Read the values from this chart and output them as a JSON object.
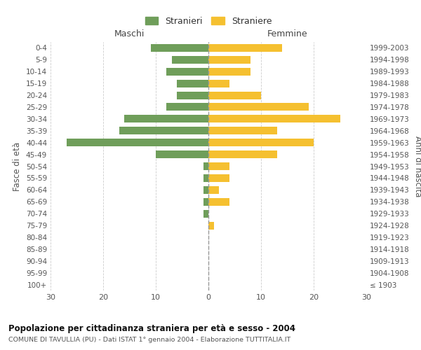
{
  "age_groups": [
    "0-4",
    "5-9",
    "10-14",
    "15-19",
    "20-24",
    "25-29",
    "30-34",
    "35-39",
    "40-44",
    "45-49",
    "50-54",
    "55-59",
    "60-64",
    "65-69",
    "70-74",
    "75-79",
    "80-84",
    "85-89",
    "90-94",
    "95-99",
    "100+"
  ],
  "birth_years": [
    "1999-2003",
    "1994-1998",
    "1989-1993",
    "1984-1988",
    "1979-1983",
    "1974-1978",
    "1969-1973",
    "1964-1968",
    "1959-1963",
    "1954-1958",
    "1949-1953",
    "1944-1948",
    "1939-1943",
    "1934-1938",
    "1929-1933",
    "1924-1928",
    "1919-1923",
    "1914-1918",
    "1909-1913",
    "1904-1908",
    "≤ 1903"
  ],
  "maschi": [
    11,
    7,
    8,
    6,
    6,
    8,
    16,
    17,
    27,
    10,
    1,
    1,
    1,
    1,
    1,
    0,
    0,
    0,
    0,
    0,
    0
  ],
  "femmine": [
    14,
    8,
    8,
    4,
    10,
    19,
    25,
    13,
    20,
    13,
    4,
    4,
    2,
    4,
    0,
    1,
    0,
    0,
    0,
    0,
    0
  ],
  "male_color": "#6f9e5a",
  "female_color": "#f5c030",
  "title_main": "Popolazione per cittadinanza straniera per età e sesso - 2004",
  "title_sub": "COMUNE DI TAVULLIA (PU) - Dati ISTAT 1° gennaio 2004 - Elaborazione TUTTITALIA.IT",
  "legend_male": "Stranieri",
  "legend_female": "Straniere",
  "xlabel_left": "Maschi",
  "xlabel_right": "Femmine",
  "ylabel_left": "Fasce di età",
  "ylabel_right": "Anni di nascita",
  "xlim": 30,
  "background_color": "#ffffff",
  "grid_color": "#cccccc"
}
